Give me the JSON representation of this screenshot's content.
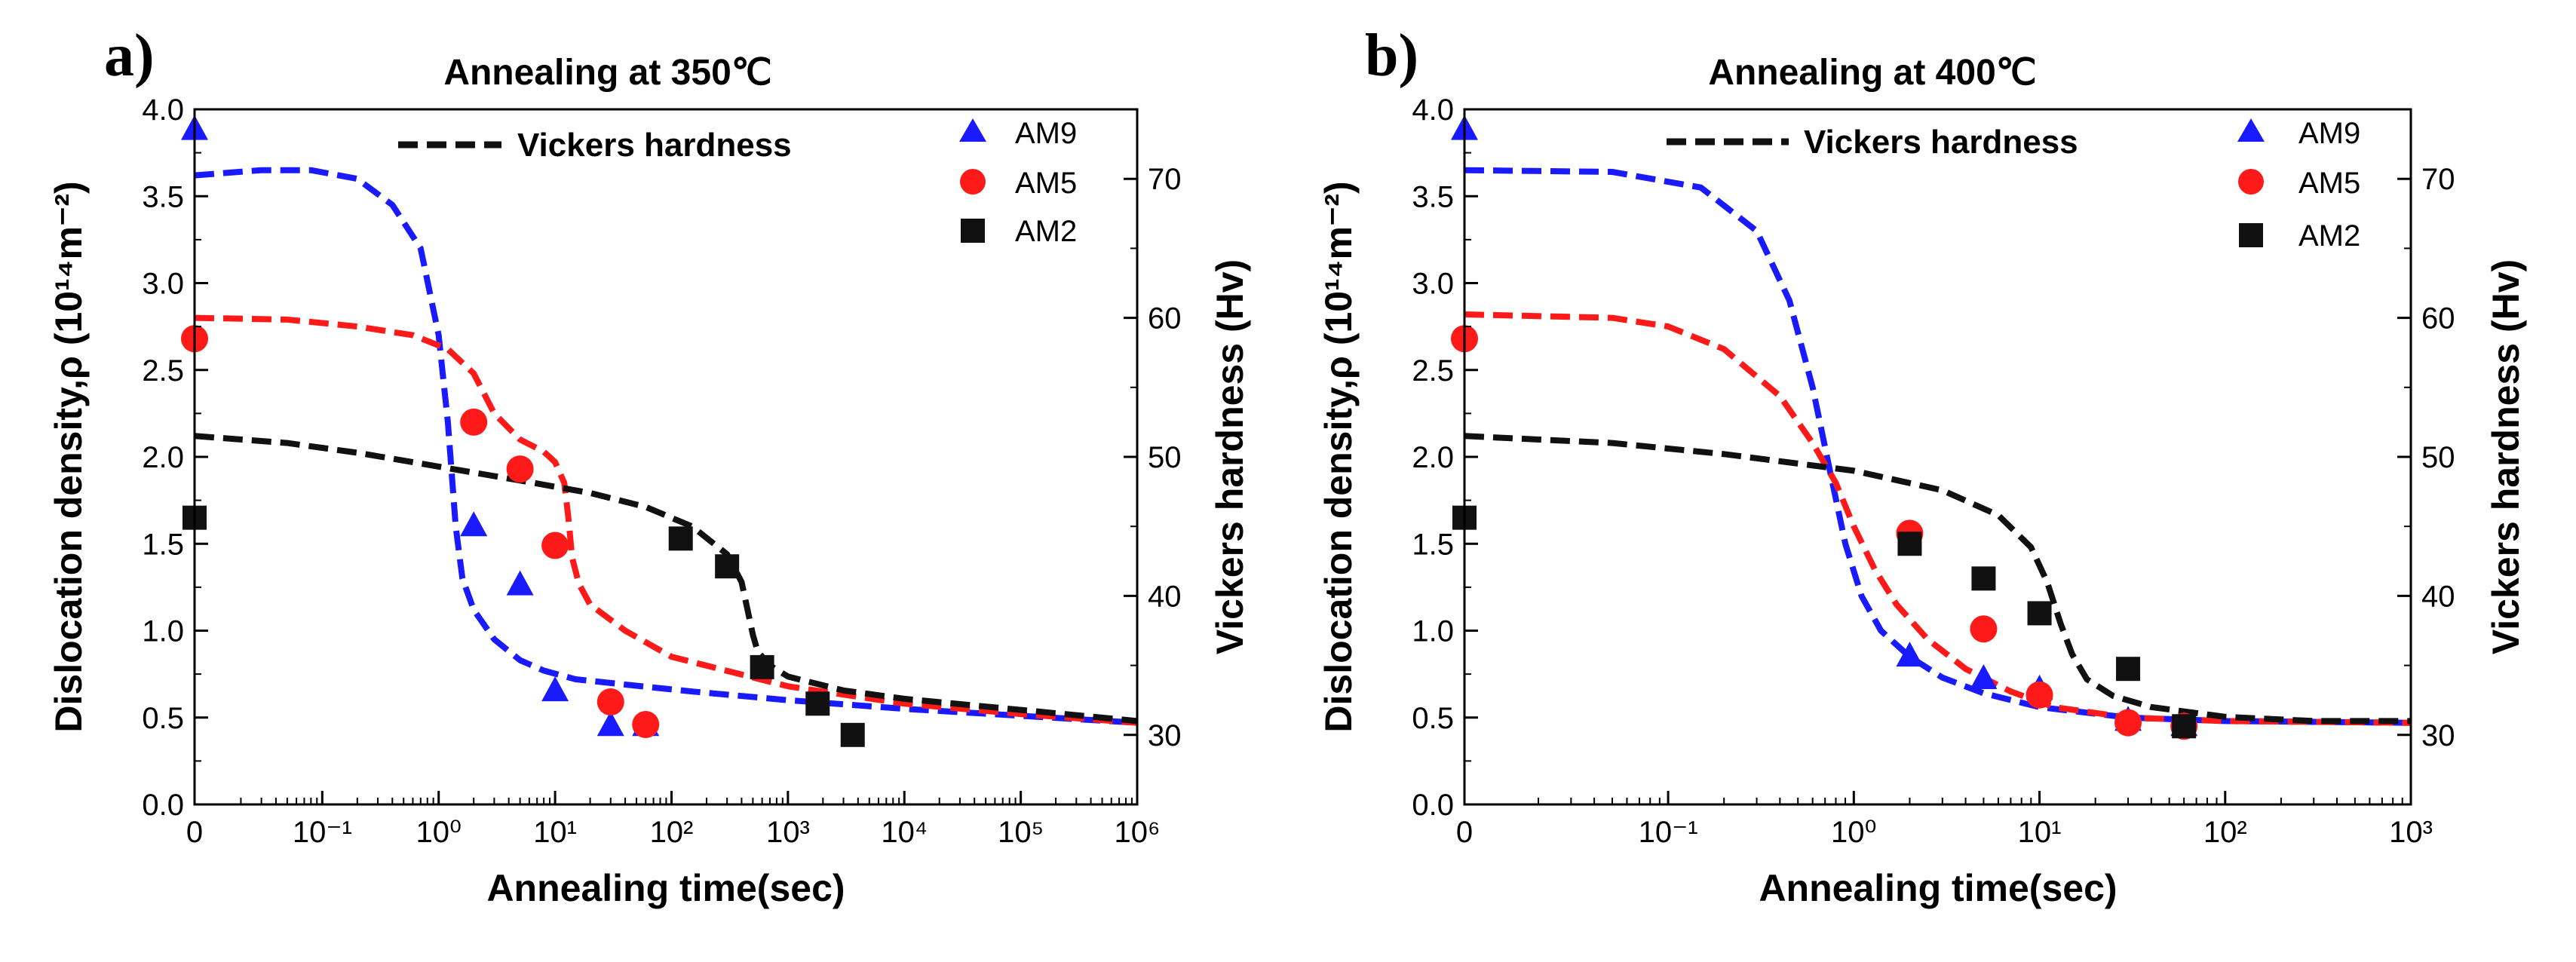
{
  "chart_data": [
    {
      "panel_letter": "a)",
      "title": "Annealing at 350℃",
      "type": "scatter",
      "xlabel": "Annealing time(sec)",
      "ylabel": "Dislocation density,ρ (10¹⁴m⁻²)",
      "y2label": "Vickers hardness (Hv)",
      "x_scale": "log",
      "xlim": [
        0.008,
        1000000
      ],
      "ylim": [
        0,
        4.0
      ],
      "y2lim": [
        25,
        75
      ],
      "x_tick_labels": [
        "0",
        "10⁻¹",
        "10⁰",
        "10¹",
        "10²",
        "10³",
        "10⁴",
        "10⁵",
        "10⁶"
      ],
      "y_tick_labels": [
        "0.0",
        "0.5",
        "1.0",
        "1.5",
        "2.0",
        "2.5",
        "3.0",
        "3.5",
        "4.0"
      ],
      "y2_tick_labels": [
        "30",
        "40",
        "50",
        "60",
        "70"
      ],
      "legend_position": "top-right",
      "series": [
        {
          "name": "AM9",
          "marker": "triangle",
          "color": "#1a1aff",
          "x": [
            "0",
            2,
            5,
            10,
            30,
            60
          ],
          "y": [
            3.88,
            1.6,
            1.26,
            0.65,
            0.45,
            0.45
          ]
        },
        {
          "name": "AM5",
          "marker": "circle",
          "color": "#ff1a1a",
          "x": [
            "0",
            2,
            5,
            10,
            30,
            60
          ],
          "y": [
            2.68,
            2.2,
            1.93,
            1.49,
            0.59,
            0.46
          ]
        },
        {
          "name": "AM2",
          "marker": "square",
          "color": "#111111",
          "x": [
            "0",
            120,
            300,
            600,
            1800,
            3600
          ],
          "y": [
            1.65,
            1.53,
            1.37,
            0.79,
            0.58,
            0.4
          ]
        }
      ],
      "fit_curves": [
        {
          "color": "#1a1aff",
          "style": "dashed",
          "x": [
            0.008,
            0.03,
            0.08,
            0.2,
            0.4,
            0.7,
            1.0,
            1.2,
            1.4,
            1.6,
            2,
            3,
            5,
            8,
            15,
            40,
            150,
            1000,
            10000,
            100000,
            1000000
          ],
          "y": [
            3.62,
            3.65,
            3.65,
            3.6,
            3.45,
            3.2,
            2.7,
            2.2,
            1.6,
            1.3,
            1.12,
            0.95,
            0.83,
            0.77,
            0.72,
            0.69,
            0.65,
            0.6,
            0.55,
            0.51,
            0.47
          ]
        },
        {
          "color": "#ff1a1a",
          "style": "dashed",
          "x": [
            0.008,
            0.05,
            0.2,
            0.6,
            1.2,
            2,
            3,
            5,
            8,
            10,
            12,
            13,
            14,
            16,
            20,
            40,
            100,
            1000,
            10000,
            100000,
            1000000
          ],
          "y": [
            2.8,
            2.79,
            2.75,
            2.7,
            2.62,
            2.48,
            2.25,
            2.1,
            2.03,
            1.97,
            1.85,
            1.65,
            1.42,
            1.27,
            1.15,
            1.0,
            0.85,
            0.68,
            0.58,
            0.52,
            0.47
          ]
        },
        {
          "name": "Vickers hardness",
          "color": "#111111",
          "style": "dashed",
          "axis": "y2",
          "x": [
            0.008,
            0.05,
            0.2,
            1,
            5,
            20,
            60,
            150,
            300,
            400,
            450,
            500,
            550,
            700,
            1000,
            3000,
            10000,
            100000,
            1000000
          ],
          "y": [
            51.5,
            51.0,
            50.3,
            49.3,
            48.3,
            47.4,
            46.4,
            45.0,
            43.0,
            41.0,
            39.0,
            37.2,
            36.0,
            35.0,
            34.2,
            33.2,
            32.6,
            31.8,
            31.0
          ]
        }
      ]
    },
    {
      "panel_letter": "b)",
      "title": "Annealing at 400℃",
      "type": "scatter",
      "xlabel": "Annealing time(sec)",
      "ylabel": "Dislocation density,ρ (10¹⁴m⁻²)",
      "y2label": "Vickers hardness (Hv)",
      "x_scale": "log",
      "xlim": [
        0.008,
        1000
      ],
      "ylim": [
        0,
        4.0
      ],
      "y2lim": [
        25,
        75
      ],
      "x_tick_labels": [
        "0",
        "10⁻¹",
        "10⁰",
        "10¹",
        "10²",
        "10³"
      ],
      "y_tick_labels": [
        "0.0",
        "0.5",
        "1.0",
        "1.5",
        "2.0",
        "2.5",
        "3.0",
        "3.5",
        "4.0"
      ],
      "y2_tick_labels": [
        "30",
        "40",
        "50",
        "60",
        "70"
      ],
      "legend_position": "top-right",
      "series": [
        {
          "name": "AM9",
          "marker": "triangle",
          "color": "#1a1aff",
          "x": [
            "0",
            2,
            5,
            10,
            30,
            60
          ],
          "y": [
            3.88,
            0.85,
            0.72,
            0.66,
            0.48,
            0.45
          ]
        },
        {
          "name": "AM5",
          "marker": "circle",
          "color": "#ff1a1a",
          "x": [
            "0",
            2,
            5,
            10,
            30,
            60
          ],
          "y": [
            2.68,
            1.56,
            1.01,
            0.63,
            0.47,
            0.45
          ]
        },
        {
          "name": "AM2",
          "marker": "square",
          "color": "#111111",
          "x": [
            "0",
            2,
            5,
            10,
            30,
            60
          ],
          "y": [
            1.65,
            1.5,
            1.3,
            1.1,
            0.78,
            0.45
          ]
        }
      ],
      "fit_curves": [
        {
          "color": "#1a1aff",
          "style": "dashed",
          "x": [
            0.008,
            0.05,
            0.15,
            0.3,
            0.45,
            0.6,
            0.75,
            0.9,
            1.1,
            1.4,
            2,
            3,
            5,
            10,
            30,
            100,
            1000
          ],
          "y": [
            3.65,
            3.64,
            3.55,
            3.3,
            2.9,
            2.4,
            1.9,
            1.5,
            1.2,
            1.0,
            0.85,
            0.73,
            0.64,
            0.56,
            0.5,
            0.48,
            0.47
          ]
        },
        {
          "color": "#ff1a1a",
          "style": "dashed",
          "x": [
            0.008,
            0.05,
            0.1,
            0.2,
            0.4,
            0.6,
            0.8,
            1.0,
            1.3,
            1.7,
            2.5,
            4,
            7,
            12,
            30,
            100,
            1000
          ],
          "y": [
            2.82,
            2.8,
            2.75,
            2.62,
            2.35,
            2.08,
            1.85,
            1.6,
            1.35,
            1.15,
            0.95,
            0.78,
            0.65,
            0.56,
            0.5,
            0.48,
            0.47
          ]
        },
        {
          "name": "Vickers hardness",
          "color": "#111111",
          "style": "dashed",
          "axis": "y2",
          "x": [
            0.008,
            0.05,
            0.2,
            1,
            3,
            6,
            9,
            11,
            13,
            15,
            18,
            25,
            40,
            100,
            300,
            1000
          ],
          "y": [
            51.5,
            51.0,
            50.2,
            49.0,
            47.6,
            45.8,
            43.5,
            41.0,
            38.0,
            35.8,
            34.0,
            32.8,
            32.0,
            31.3,
            31.0,
            31.0
          ]
        }
      ]
    }
  ]
}
